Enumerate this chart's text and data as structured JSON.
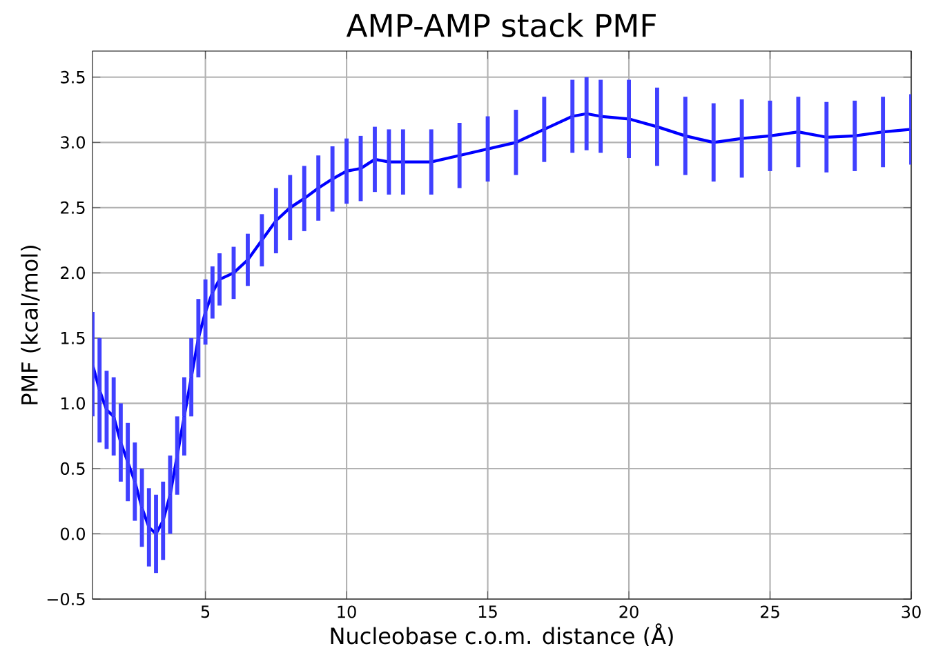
{
  "chart_data": {
    "type": "line",
    "title": "AMP-AMP stack PMF",
    "xlabel": "Nucleobase c.o.m. distance (Å)",
    "ylabel": "PMF (kcal/mol)",
    "x": [
      1,
      1.25,
      1.5,
      1.75,
      2,
      2.25,
      2.5,
      2.75,
      3,
      3.25,
      3.5,
      3.75,
      4,
      4.25,
      4.5,
      4.75,
      5,
      5.25,
      5.5,
      6,
      6.5,
      7,
      7.5,
      8,
      8.5,
      9,
      9.5,
      10,
      10.5,
      11,
      11.5,
      12,
      13,
      14,
      15,
      16,
      17,
      18,
      18.5,
      19,
      20,
      21,
      22,
      23,
      24,
      25,
      26,
      27,
      28,
      29,
      30
    ],
    "series": [
      {
        "color": "#0000ff",
        "values": [
          1.3,
          1.1,
          0.95,
          0.9,
          0.7,
          0.55,
          0.4,
          0.2,
          0.05,
          0.0,
          0.1,
          0.3,
          0.6,
          0.9,
          1.2,
          1.5,
          1.7,
          1.85,
          1.95,
          2.0,
          2.1,
          2.25,
          2.4,
          2.5,
          2.57,
          2.65,
          2.72,
          2.78,
          2.8,
          2.87,
          2.85,
          2.85,
          2.85,
          2.9,
          2.95,
          3.0,
          3.1,
          3.2,
          3.22,
          3.2,
          3.18,
          3.12,
          3.05,
          3.0,
          3.03,
          3.05,
          3.08,
          3.04,
          3.05,
          3.08,
          3.1
        ],
        "errors": [
          0.4,
          0.4,
          0.3,
          0.3,
          0.3,
          0.3,
          0.3,
          0.3,
          0.3,
          0.3,
          0.3,
          0.3,
          0.3,
          0.3,
          0.3,
          0.3,
          0.25,
          0.2,
          0.2,
          0.2,
          0.2,
          0.2,
          0.25,
          0.25,
          0.25,
          0.25,
          0.25,
          0.25,
          0.25,
          0.25,
          0.25,
          0.25,
          0.25,
          0.25,
          0.25,
          0.25,
          0.25,
          0.28,
          0.28,
          0.28,
          0.3,
          0.3,
          0.3,
          0.3,
          0.3,
          0.27,
          0.27,
          0.27,
          0.27,
          0.27,
          0.27
        ]
      }
    ],
    "xlim": [
      1,
      30
    ],
    "ylim": [
      -0.5,
      3.7
    ],
    "xticks": [
      5,
      10,
      15,
      20,
      25,
      30
    ],
    "yticks": [
      {
        "value": -0.5,
        "label": "−0.5"
      },
      {
        "value": 0,
        "label": "0.0"
      },
      {
        "value": 0.5,
        "label": "0.5"
      },
      {
        "value": 1,
        "label": "1.0"
      },
      {
        "value": 1.5,
        "label": "1.5"
      },
      {
        "value": 2,
        "label": "2.0"
      },
      {
        "value": 2.5,
        "label": "2.5"
      },
      {
        "value": 3,
        "label": "3.0"
      },
      {
        "value": 3.5,
        "label": "3.5"
      }
    ],
    "grid": true,
    "marker": "none",
    "line_style": "solid"
  }
}
